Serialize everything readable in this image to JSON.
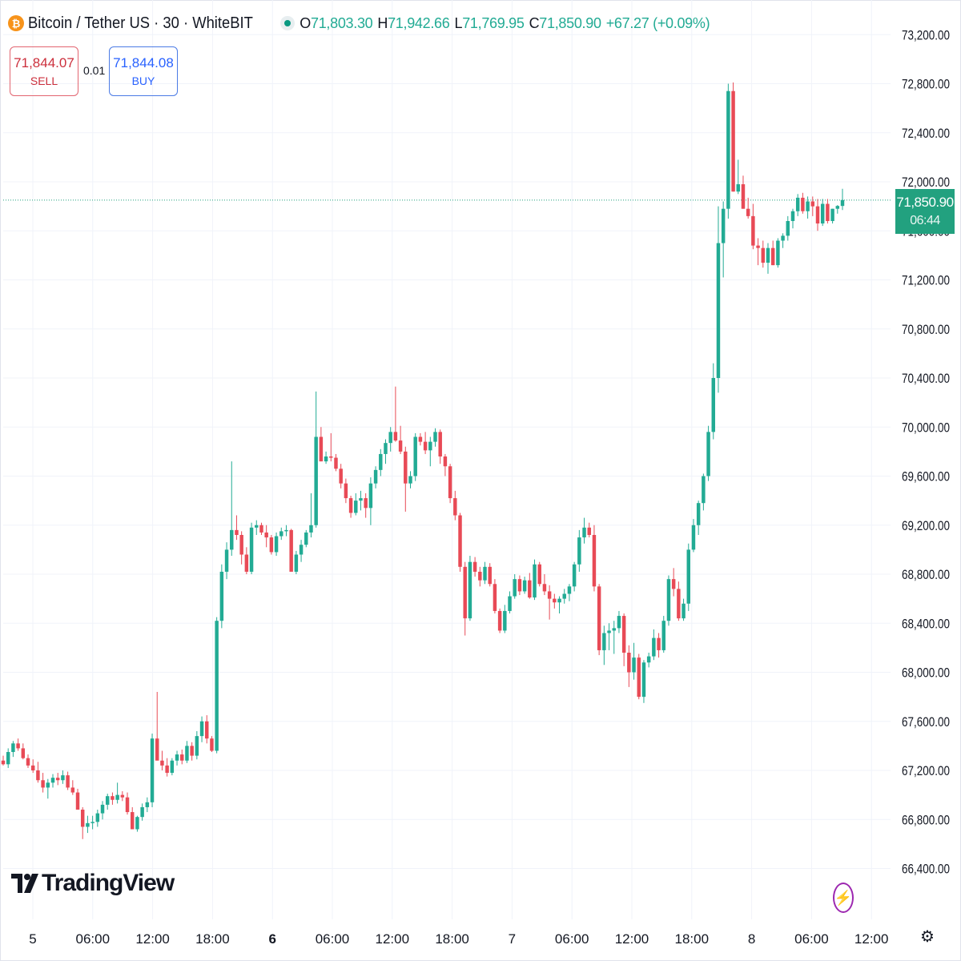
{
  "header": {
    "coin_icon": "₿",
    "symbol": "Bitcoin / Tether US · 30 · WhiteBIT",
    "o_label": "O",
    "o_value": "71,803.30",
    "h_label": "H",
    "h_value": "71,942.66",
    "l_label": "L",
    "l_value": "71,769.95",
    "c_label": "C",
    "c_value": "71,850.90",
    "change": "+67.27 (+0.09%)"
  },
  "trade": {
    "sell_price": "71,844.07",
    "sell_label": "SELL",
    "spread": "0.01",
    "buy_price": "71,844.08",
    "buy_label": "BUY"
  },
  "last_price": {
    "price": "71,850.90",
    "countdown": "06:44"
  },
  "branding": {
    "logo_text": "TradingView"
  },
  "icons": {
    "bolt": "lightning-icon",
    "settings": "gear-icon"
  },
  "colors": {
    "up": "#22ab94",
    "down": "#e84a56",
    "last_price": "#22a17f",
    "grid": "#f0f3fa"
  },
  "chart_data": {
    "type": "candlestick",
    "symbol": "Bitcoin / Tether US",
    "interval": "30",
    "exchange": "WhiteBIT",
    "y_ticks": [
      "73,200.00",
      "72,800.00",
      "72,400.00",
      "72,000.00",
      "71,600.00",
      "71,200.00",
      "70,800.00",
      "70,400.00",
      "70,000.00",
      "69,600.00",
      "69,200.00",
      "68,800.00",
      "68,400.00",
      "68,000.00",
      "67,600.00",
      "67,200.00",
      "66,800.00",
      "66,400.00"
    ],
    "y_tick_values": [
      73200,
      72800,
      72400,
      72000,
      71600,
      71200,
      70800,
      70400,
      70000,
      69600,
      69200,
      68800,
      68400,
      68000,
      67600,
      67200,
      66800,
      66400
    ],
    "x_ticks": [
      "5",
      "06:00",
      "12:00",
      "18:00",
      "6",
      "06:00",
      "12:00",
      "18:00",
      "7",
      "06:00",
      "12:00",
      "18:00",
      "8",
      "06:00",
      "12:00"
    ],
    "x_tick_bold": [
      false,
      false,
      false,
      false,
      true,
      false,
      false,
      false,
      false,
      false,
      false,
      false,
      false,
      false,
      false
    ],
    "ylim": [
      66300,
      73300
    ],
    "grid": true,
    "candles": [
      [
        67280,
        67320,
        67240,
        67250
      ],
      [
        67250,
        67380,
        67220,
        67350
      ],
      [
        67350,
        67440,
        67310,
        67420
      ],
      [
        67420,
        67460,
        67360,
        67380
      ],
      [
        67380,
        67420,
        67290,
        67300
      ],
      [
        67300,
        67330,
        67220,
        67240
      ],
      [
        67240,
        67290,
        67180,
        67200
      ],
      [
        67200,
        67270,
        67100,
        67120
      ],
      [
        67120,
        67180,
        67020,
        67060
      ],
      [
        67060,
        67130,
        66970,
        67100
      ],
      [
        67100,
        67170,
        67060,
        67140
      ],
      [
        67140,
        67180,
        67080,
        67120
      ],
      [
        67120,
        67200,
        67090,
        67160
      ],
      [
        67160,
        67190,
        67040,
        67060
      ],
      [
        67060,
        67120,
        67000,
        67020
      ],
      [
        67020,
        67050,
        66900,
        66880
      ],
      [
        66880,
        66900,
        66640,
        66740
      ],
      [
        66740,
        66830,
        66690,
        66770
      ],
      [
        66770,
        66830,
        66720,
        66780
      ],
      [
        66780,
        66880,
        66740,
        66850
      ],
      [
        66850,
        66950,
        66800,
        66920
      ],
      [
        66920,
        67010,
        66880,
        66990
      ],
      [
        66990,
        67020,
        66920,
        66960
      ],
      [
        66960,
        67100,
        66930,
        67000
      ],
      [
        67000,
        67030,
        66950,
        66980
      ],
      [
        66980,
        67020,
        66840,
        66860
      ],
      [
        66860,
        66900,
        66720,
        66720
      ],
      [
        66720,
        66830,
        66700,
        66820
      ],
      [
        66820,
        66930,
        66790,
        66900
      ],
      [
        66900,
        66980,
        66860,
        66940
      ],
      [
        66940,
        67500,
        66900,
        67460
      ],
      [
        67460,
        67840,
        67300,
        67280
      ],
      [
        67280,
        67360,
        67200,
        67240
      ],
      [
        67240,
        67300,
        67150,
        67180
      ],
      [
        67180,
        67300,
        67160,
        67280
      ],
      [
        67280,
        67360,
        67240,
        67330
      ],
      [
        67330,
        67370,
        67250,
        67280
      ],
      [
        67280,
        67440,
        67260,
        67400
      ],
      [
        67400,
        67430,
        67280,
        67320
      ],
      [
        67320,
        67520,
        67290,
        67480
      ],
      [
        67480,
        67640,
        67430,
        67600
      ],
      [
        67600,
        67650,
        67420,
        67460
      ],
      [
        67460,
        67480,
        67350,
        67360
      ],
      [
        67360,
        68450,
        67340,
        68420
      ],
      [
        68420,
        68880,
        68360,
        68820
      ],
      [
        68820,
        69060,
        68760,
        69000
      ],
      [
        69000,
        69720,
        68950,
        69160
      ],
      [
        69160,
        69280,
        69080,
        69120
      ],
      [
        69120,
        69150,
        68880,
        68960
      ],
      [
        68960,
        69020,
        68800,
        68820
      ],
      [
        68820,
        69220,
        68800,
        69180
      ],
      [
        69180,
        69240,
        69120,
        69200
      ],
      [
        69200,
        69220,
        69120,
        69140
      ],
      [
        69140,
        69200,
        69020,
        69100
      ],
      [
        69100,
        69120,
        68960,
        68980
      ],
      [
        68980,
        69140,
        68950,
        69110
      ],
      [
        69110,
        69180,
        69080,
        69150
      ],
      [
        69150,
        69200,
        69110,
        69160
      ],
      [
        69160,
        69170,
        68880,
        68820
      ],
      [
        68820,
        68990,
        68800,
        68960
      ],
      [
        68960,
        69080,
        68900,
        69040
      ],
      [
        69040,
        69160,
        69020,
        69140
      ],
      [
        69140,
        69460,
        69100,
        69200
      ],
      [
        69200,
        70290,
        69180,
        69920
      ],
      [
        69920,
        70000,
        69720,
        69720
      ],
      [
        69720,
        69800,
        69700,
        69760
      ],
      [
        69760,
        69950,
        69720,
        69750
      ],
      [
        69750,
        69780,
        69640,
        69660
      ],
      [
        69660,
        69700,
        69500,
        69540
      ],
      [
        69540,
        69580,
        69380,
        69420
      ],
      [
        69420,
        69440,
        69260,
        69300
      ],
      [
        69300,
        69460,
        69280,
        69400
      ],
      [
        69400,
        69480,
        69320,
        69420
      ],
      [
        69420,
        69460,
        69260,
        69340
      ],
      [
        69340,
        69590,
        69200,
        69540
      ],
      [
        69540,
        69680,
        69500,
        69650
      ],
      [
        69650,
        69820,
        69600,
        69780
      ],
      [
        69780,
        69900,
        69700,
        69870
      ],
      [
        69870,
        70000,
        69800,
        69960
      ],
      [
        69960,
        70330,
        69880,
        69890
      ],
      [
        69890,
        70010,
        69780,
        69800
      ],
      [
        69800,
        69840,
        69310,
        69540
      ],
      [
        69540,
        69640,
        69500,
        69600
      ],
      [
        69600,
        69950,
        69560,
        69920
      ],
      [
        69920,
        69950,
        69850,
        69880
      ],
      [
        69880,
        69960,
        69780,
        69810
      ],
      [
        69810,
        69920,
        69680,
        69880
      ],
      [
        69880,
        69990,
        69840,
        69960
      ],
      [
        69960,
        69980,
        69700,
        69760
      ],
      [
        69760,
        69780,
        69600,
        69680
      ],
      [
        69680,
        69700,
        69380,
        69420
      ],
      [
        69420,
        69480,
        69240,
        69280
      ],
      [
        69280,
        69300,
        68820,
        68860
      ],
      [
        68860,
        68900,
        68300,
        68440
      ],
      [
        68440,
        68950,
        68420,
        68900
      ],
      [
        68900,
        68940,
        68780,
        68820
      ],
      [
        68820,
        68860,
        68700,
        68750
      ],
      [
        68750,
        68900,
        68720,
        68860
      ],
      [
        68860,
        68890,
        68700,
        68720
      ],
      [
        68720,
        68760,
        68480,
        68500
      ],
      [
        68500,
        68520,
        68320,
        68340
      ],
      [
        68340,
        68550,
        68320,
        68500
      ],
      [
        68500,
        68660,
        68480,
        68620
      ],
      [
        68620,
        68800,
        68600,
        68760
      ],
      [
        68760,
        68790,
        68630,
        68660
      ],
      [
        68660,
        68780,
        68640,
        68750
      ],
      [
        68750,
        68810,
        68600,
        68610
      ],
      [
        68610,
        68920,
        68590,
        68880
      ],
      [
        68880,
        68900,
        68700,
        68720
      ],
      [
        68720,
        68800,
        68630,
        68660
      ],
      [
        68660,
        68710,
        68430,
        68600
      ],
      [
        68600,
        68640,
        68520,
        68570
      ],
      [
        68570,
        68620,
        68480,
        68600
      ],
      [
        68600,
        68680,
        68560,
        68640
      ],
      [
        68640,
        68720,
        68580,
        68700
      ],
      [
        68700,
        68900,
        68660,
        68880
      ],
      [
        68880,
        69160,
        68820,
        69100
      ],
      [
        69100,
        69260,
        69050,
        69180
      ],
      [
        69180,
        69220,
        69100,
        69120
      ],
      [
        69120,
        69200,
        68660,
        68700
      ],
      [
        68700,
        68720,
        68140,
        68180
      ],
      [
        68180,
        68380,
        68060,
        68320
      ],
      [
        68320,
        68400,
        68180,
        68340
      ],
      [
        68340,
        68420,
        68150,
        68360
      ],
      [
        68360,
        68500,
        68320,
        68460
      ],
      [
        68460,
        68480,
        68050,
        68160
      ],
      [
        68160,
        68220,
        67880,
        68000
      ],
      [
        68000,
        68240,
        67940,
        68120
      ],
      [
        68120,
        68150,
        67780,
        67800
      ],
      [
        67800,
        68100,
        67750,
        68080
      ],
      [
        68080,
        68160,
        68040,
        68130
      ],
      [
        68130,
        68350,
        68100,
        68280
      ],
      [
        68280,
        68320,
        68120,
        68180
      ],
      [
        68180,
        68460,
        68160,
        68420
      ],
      [
        68420,
        68790,
        68380,
        68760
      ],
      [
        68760,
        68850,
        68620,
        68680
      ],
      [
        68680,
        68740,
        68420,
        68440
      ],
      [
        68440,
        68600,
        68420,
        68560
      ],
      [
        68560,
        69050,
        68500,
        69000
      ],
      [
        69000,
        69250,
        68980,
        69200
      ],
      [
        69200,
        69400,
        69120,
        69380
      ],
      [
        69380,
        69620,
        69320,
        69600
      ],
      [
        69600,
        70010,
        69560,
        69960
      ],
      [
        69960,
        70520,
        69900,
        70400
      ],
      [
        70400,
        71800,
        70280,
        71500
      ],
      [
        71500,
        71840,
        71220,
        71780
      ],
      [
        71780,
        72800,
        71700,
        72740
      ],
      [
        72740,
        72810,
        71920,
        71920
      ],
      [
        71920,
        72180,
        71900,
        71980
      ],
      [
        71980,
        72050,
        71780,
        71780
      ],
      [
        71780,
        71870,
        71700,
        71720
      ],
      [
        71720,
        71820,
        71450,
        71480
      ],
      [
        71480,
        71540,
        71320,
        71460
      ],
      [
        71460,
        71520,
        71300,
        71340
      ],
      [
        71340,
        71500,
        71250,
        71460
      ],
      [
        71460,
        71520,
        71320,
        71320
      ],
      [
        71320,
        71540,
        71300,
        71520
      ],
      [
        71520,
        71580,
        71460,
        71560
      ],
      [
        71560,
        71720,
        71520,
        71680
      ],
      [
        71680,
        71780,
        71620,
        71760
      ],
      [
        71760,
        71900,
        71720,
        71870
      ],
      [
        71870,
        71910,
        71740,
        71760
      ],
      [
        71760,
        71880,
        71700,
        71840
      ],
      [
        71840,
        71880,
        71720,
        71800
      ],
      [
        71800,
        71860,
        71600,
        71660
      ],
      [
        71660,
        71860,
        71640,
        71820
      ],
      [
        71820,
        71860,
        71660,
        71680
      ],
      [
        71680,
        71780,
        71660,
        71780
      ],
      [
        71780,
        71810,
        71740,
        71803
      ],
      [
        71803,
        71943,
        71770,
        71851
      ]
    ]
  }
}
